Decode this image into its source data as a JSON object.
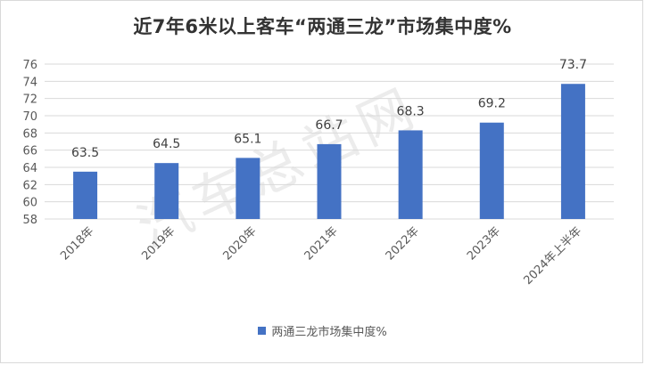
{
  "chart_data": {
    "type": "bar",
    "title": "近7年6米以上客车“两通三龙”市场集中度%",
    "categories": [
      "2018年",
      "2019年",
      "2020年",
      "2021年",
      "2022年",
      "2023年",
      "2024年上半年"
    ],
    "series": [
      {
        "name": "两通三龙市场集中度%",
        "values": [
          63.5,
          64.5,
          65.1,
          66.7,
          68.3,
          69.2,
          73.7
        ]
      }
    ],
    "ylim": [
      58,
      76
    ],
    "yticks": [
      58,
      60,
      62,
      64,
      66,
      68,
      70,
      72,
      74,
      76
    ],
    "data_labels": [
      "63.5",
      "64.5",
      "65.1",
      "66.7",
      "68.3",
      "69.2",
      "73.7"
    ],
    "grid": true,
    "legend": "bottom",
    "bar_color": "#4472C4"
  },
  "watermark": "汽车总站网"
}
